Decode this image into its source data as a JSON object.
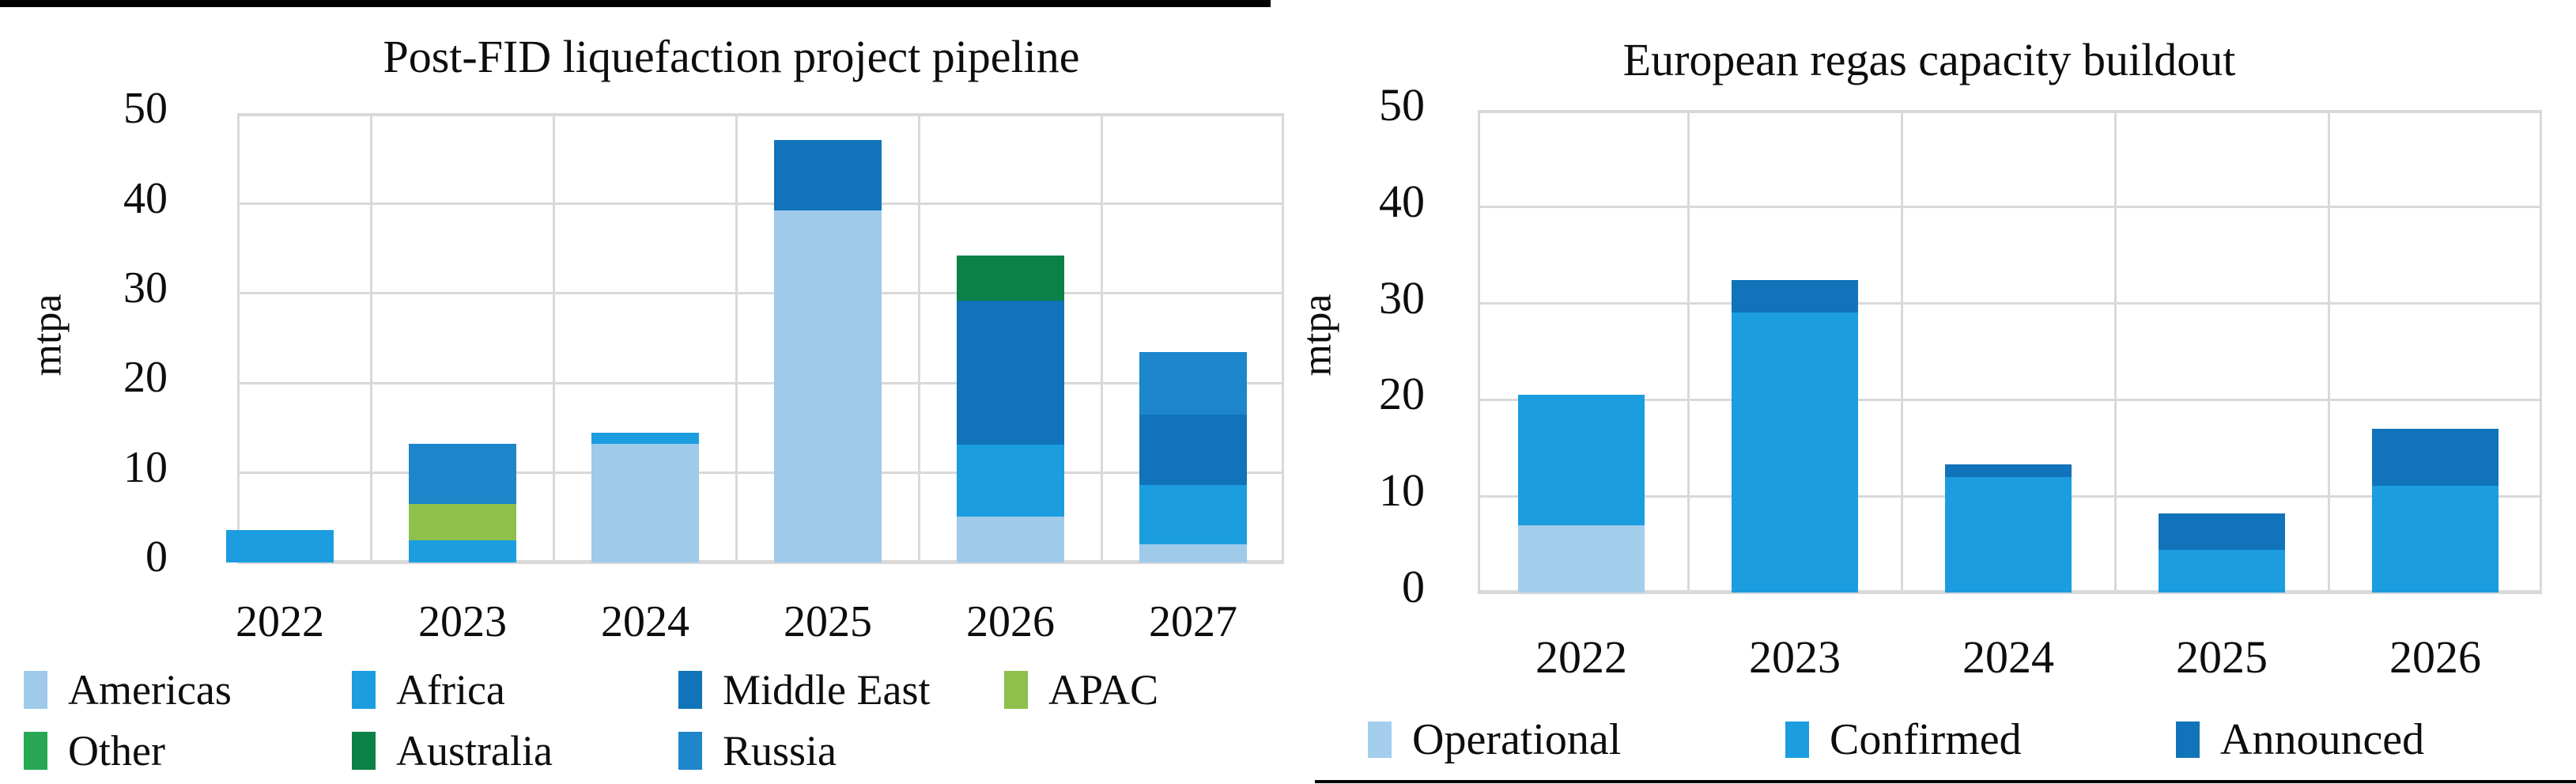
{
  "page": {
    "background": "#ffffff",
    "grid_color": "#d9d9d9",
    "axis_text_color": "#0d0d0d",
    "border_line_color": "#000000"
  },
  "chart_data": [
    {
      "type": "bar",
      "stacked": true,
      "title": "Post-FID liquefaction project pipeline",
      "xlabel": "",
      "ylabel": "mtpa",
      "ylim": [
        0,
        50
      ],
      "yticks": [
        0,
        10,
        20,
        30,
        40,
        50
      ],
      "grid": true,
      "legend_position": "bottom",
      "categories": [
        "2022",
        "2023",
        "2024",
        "2025",
        "2026",
        "2027"
      ],
      "series": [
        {
          "name": "Americas",
          "color": "#9FCAEA",
          "values": [
            0,
            0,
            13.2,
            39.2,
            5.1,
            2.0
          ]
        },
        {
          "name": "Africa",
          "color": "#1B9DE0",
          "values": [
            3.6,
            2.5,
            1.3,
            0,
            8.0,
            6.6
          ]
        },
        {
          "name": "Middle East",
          "color": "#1173B9",
          "values": [
            0,
            0,
            0,
            7.9,
            16.1,
            7.9
          ]
        },
        {
          "name": "APAC",
          "color": "#8EC04B",
          "values": [
            0,
            4.0,
            0,
            0,
            0,
            0
          ]
        },
        {
          "name": "Other",
          "color": "#28A855",
          "values": [
            0,
            0,
            0,
            0,
            0,
            0
          ]
        },
        {
          "name": "Australia",
          "color": "#0B8145",
          "values": [
            0,
            0,
            0,
            0,
            5.0,
            0
          ]
        },
        {
          "name": "Russia",
          "color": "#1E86CB",
          "values": [
            0,
            6.7,
            0,
            0,
            0,
            7.0
          ]
        }
      ],
      "totals": [
        3.6,
        13.2,
        14.5,
        47.1,
        34.2,
        23.5
      ],
      "legend_rows": [
        [
          "Americas",
          "Africa",
          "Middle East",
          "APAC"
        ],
        [
          "Other",
          "Australia",
          "Russia"
        ]
      ]
    },
    {
      "type": "bar",
      "stacked": true,
      "title": "European regas capacity buildout",
      "xlabel": "",
      "ylabel": "mtpa",
      "ylim": [
        0,
        50
      ],
      "yticks": [
        0,
        10,
        20,
        30,
        40,
        50
      ],
      "grid": true,
      "legend_position": "bottom",
      "categories": [
        "2022",
        "2023",
        "2024",
        "2025",
        "2026"
      ],
      "series": [
        {
          "name": "Operational",
          "color": "#A3CEEC",
          "values": [
            7.0,
            0,
            0,
            0,
            0
          ]
        },
        {
          "name": "Confirmed",
          "color": "#1B9DE0",
          "values": [
            13.5,
            29.1,
            12.0,
            4.4,
            11.1
          ]
        },
        {
          "name": "Announced",
          "color": "#1173B9",
          "values": [
            0,
            3.3,
            1.3,
            3.8,
            5.9
          ]
        }
      ],
      "totals": [
        20.5,
        32.4,
        13.3,
        8.2,
        17.0
      ],
      "legend_rows": [
        [
          "Operational",
          "Confirmed",
          "Announced"
        ]
      ]
    }
  ]
}
